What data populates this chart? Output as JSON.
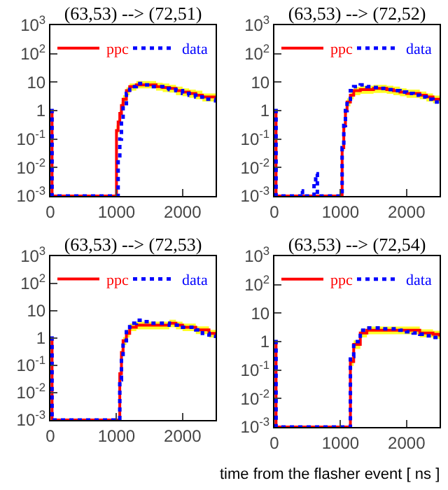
{
  "chart_data": [
    {
      "type": "step",
      "title": "(63,53) --> (72,51)",
      "x": [
        0,
        25,
        1000,
        1025,
        1050,
        1075,
        1100,
        1150,
        1200,
        1300,
        1400,
        1500,
        1600,
        1700,
        1800,
        1900,
        2000,
        2100,
        2200,
        2300,
        2400,
        2500
      ],
      "log": "y",
      "xlim": [
        0,
        2500
      ],
      "xticks": [
        0,
        1000,
        2000
      ],
      "ylim": [
        0.001,
        1000
      ],
      "yticks": [
        {
          "value": 0.001,
          "label": "10$^{-3}$"
        },
        {
          "value": 0.01,
          "label": "10$^{-2}$"
        },
        {
          "value": 0.1,
          "label": "10$^{-1}$"
        },
        {
          "value": 1,
          "label": "1"
        },
        {
          "value": 10,
          "label": "10"
        },
        {
          "value": 100,
          "label": "10$^{2}$"
        },
        {
          "value": 1000,
          "label": "10$^{3}$"
        }
      ],
      "grid": false,
      "legend": "top",
      "series": [
        {
          "name": "ppc",
          "color": "#ff0000",
          "line_style": "solid",
          "values": [
            1,
            0.001,
            0.2,
            0.4,
            0.8,
            1.5,
            2.5,
            5,
            7,
            8,
            8,
            8,
            7,
            6.5,
            6,
            5,
            4.5,
            4,
            3.5,
            3,
            3,
            2.5
          ],
          "upper": [
            null,
            null,
            0.3,
            0.5,
            1,
            2,
            3.5,
            6.5,
            9,
            11,
            11,
            11,
            9.5,
            9,
            8,
            7,
            6,
            5.5,
            5,
            4,
            4,
            3.5
          ],
          "lower": [
            null,
            null,
            0.15,
            0.3,
            0.6,
            1.1,
            1.8,
            3.5,
            5,
            6,
            6,
            6,
            5,
            4.5,
            4.3,
            3.5,
            3.2,
            2.8,
            2.5,
            2.1,
            2.1,
            1.8
          ]
        },
        {
          "name": "data",
          "color": "#0000ff",
          "line_style": "dotted",
          "values": [
            1,
            0.001,
            0.001,
            0.02,
            0.1,
            0.5,
            1.5,
            4,
            7,
            9,
            8,
            7,
            7,
            6,
            5.5,
            5,
            4,
            3.5,
            3,
            2.5,
            2.5,
            1.5
          ]
        }
      ]
    },
    {
      "type": "step",
      "title": "(63,53) --> (72,52)",
      "x": [
        0,
        25,
        1000,
        1025,
        1050,
        1075,
        1100,
        1150,
        1200,
        1300,
        1400,
        1500,
        1600,
        1700,
        1800,
        1900,
        2000,
        2100,
        2200,
        2300,
        2400,
        2500
      ],
      "log": "y",
      "xlim": [
        0,
        2500
      ],
      "xticks": [
        0,
        1000,
        2000
      ],
      "ylim": [
        0.001,
        1000
      ],
      "yticks": [
        {
          "value": 0.001,
          "label": "10$^{-3}$"
        },
        {
          "value": 0.01,
          "label": "10$^{-2}$"
        },
        {
          "value": 0.1,
          "label": "10$^{-1}$"
        },
        {
          "value": 1,
          "label": "1"
        },
        {
          "value": 10,
          "label": "10"
        },
        {
          "value": 100,
          "label": "10$^{2}$"
        },
        {
          "value": 1000,
          "label": "10$^{3}$"
        }
      ],
      "grid": false,
      "legend": "top",
      "series": [
        {
          "name": "ppc",
          "color": "#ff0000",
          "line_style": "solid",
          "values": [
            1,
            0.001,
            0.001,
            0.05,
            0.3,
            1,
            2,
            3.5,
            5,
            5.5,
            5.5,
            6,
            6,
            5.5,
            5,
            4.5,
            4,
            4,
            3.5,
            3,
            2.5,
            2.5
          ],
          "upper": [
            null,
            null,
            null,
            0.07,
            0.4,
            1.3,
            2.7,
            4.7,
            6.8,
            7.5,
            7.5,
            8,
            8,
            7.5,
            7,
            6,
            5.5,
            5.5,
            4.7,
            4,
            3.4,
            3.4
          ],
          "lower": [
            null,
            null,
            null,
            0.035,
            0.2,
            0.7,
            1.4,
            2.5,
            3.5,
            3.9,
            3.9,
            4.2,
            4.2,
            3.9,
            3.5,
            3.2,
            2.8,
            2.8,
            2.5,
            2.1,
            1.8,
            1.8
          ]
        },
        {
          "name": "data",
          "color": "#0000ff",
          "line_style": "dotted",
          "x": [
            0,
            25,
            400,
            425,
            600,
            625,
            650,
            1000,
            1025,
            1050,
            1075,
            1100,
            1150,
            1200,
            1300,
            1400,
            1500,
            1600,
            1700,
            1800,
            1900,
            2000,
            2100,
            2200,
            2300,
            2400,
            2500
          ],
          "values": [
            1,
            0.001,
            0.0015,
            0.001,
            0.003,
            0.006,
            0.001,
            0.001,
            0.05,
            0.3,
            1,
            2.5,
            5,
            7,
            8,
            7,
            6.5,
            6,
            5.5,
            5,
            4.5,
            4,
            3.5,
            3,
            2.5,
            2,
            1.5
          ]
        }
      ]
    },
    {
      "type": "step",
      "title": "(63,53) --> (72,53)",
      "x": [
        0,
        25,
        1000,
        1025,
        1050,
        1075,
        1100,
        1150,
        1200,
        1300,
        1400,
        1500,
        1600,
        1700,
        1800,
        1900,
        2000,
        2100,
        2200,
        2300,
        2400,
        2500
      ],
      "log": "y",
      "xlim": [
        0,
        2500
      ],
      "xticks": [
        0,
        1000,
        2000
      ],
      "ylim": [
        0.001,
        1000
      ],
      "yticks": [
        {
          "value": 0.001,
          "label": "10$^{-3}$"
        },
        {
          "value": 0.01,
          "label": "10$^{-2}$"
        },
        {
          "value": 0.1,
          "label": "10$^{-1}$"
        },
        {
          "value": 1,
          "label": "1"
        },
        {
          "value": 10,
          "label": "10"
        },
        {
          "value": 100,
          "label": "10$^{2}$"
        },
        {
          "value": 1000,
          "label": "10$^{3}$"
        }
      ],
      "grid": false,
      "legend": "top",
      "series": [
        {
          "name": "ppc",
          "color": "#ff0000",
          "line_style": "solid",
          "values": [
            1,
            0.001,
            0.001,
            0.001,
            0.05,
            0.3,
            0.8,
            1.5,
            2.5,
            3,
            3,
            3,
            3,
            3,
            3.5,
            3,
            2.5,
            2.5,
            2,
            2,
            1.5,
            1.2
          ],
          "upper": [
            null,
            null,
            null,
            null,
            0.07,
            0.4,
            1.1,
            2,
            3.4,
            4,
            4,
            4,
            4,
            4,
            4.7,
            4,
            3.4,
            3.4,
            2.7,
            2.7,
            2,
            1.6
          ],
          "lower": [
            null,
            null,
            null,
            null,
            0.035,
            0.2,
            0.55,
            1.05,
            1.8,
            2.1,
            2.1,
            2.1,
            2.1,
            2.1,
            2.5,
            2.1,
            1.8,
            1.8,
            1.4,
            1.4,
            1.05,
            0.85
          ]
        },
        {
          "name": "data",
          "color": "#0000ff",
          "line_style": "dotted",
          "values": [
            1,
            0.001,
            0.001,
            0.001,
            0.03,
            0.2,
            0.8,
            2,
            3.5,
            4.5,
            4,
            3.5,
            3.5,
            3.5,
            3,
            3,
            2.5,
            2.5,
            2,
            1.5,
            1.3,
            1
          ]
        }
      ]
    },
    {
      "type": "step",
      "title": "(63,53) --> (72,54)",
      "xlabel": "time from the flasher event [ ns ]",
      "x": [
        0,
        25,
        1000,
        1025,
        1050,
        1075,
        1100,
        1150,
        1200,
        1300,
        1400,
        1500,
        1600,
        1700,
        1800,
        1900,
        2000,
        2100,
        2200,
        2300,
        2400,
        2500
      ],
      "log": "y",
      "xlim": [
        0,
        2500
      ],
      "xticks": [
        0,
        1000,
        2000
      ],
      "ylim": [
        0.001,
        1000
      ],
      "yticks": [
        {
          "value": 0.001,
          "label": "10$^{-3}$"
        },
        {
          "value": 0.01,
          "label": "10$^{-2}$"
        },
        {
          "value": 0.1,
          "label": "10$^{-1}$"
        },
        {
          "value": 1,
          "label": "1"
        },
        {
          "value": 10,
          "label": "10"
        },
        {
          "value": 100,
          "label": "10$^{2}$"
        },
        {
          "value": 1000,
          "label": "10$^{3}$"
        }
      ],
      "grid": false,
      "legend": "top",
      "series": [
        {
          "name": "ppc",
          "color": "#ff0000",
          "line_style": "solid",
          "values": [
            1,
            0.001,
            0.001,
            0.001,
            0.001,
            0.001,
            0.001,
            0.2,
            0.8,
            2,
            2.5,
            2.5,
            2.5,
            2.5,
            2.5,
            2.5,
            2.5,
            2.5,
            2,
            2,
            1.8,
            1.5
          ],
          "upper": [
            null,
            null,
            null,
            null,
            null,
            null,
            null,
            0.27,
            1.1,
            2.7,
            3.4,
            3.4,
            3.4,
            3.4,
            3.4,
            3.4,
            3.4,
            3.4,
            2.7,
            2.7,
            2.4,
            2
          ],
          "lower": [
            null,
            null,
            null,
            null,
            null,
            null,
            null,
            0.14,
            0.55,
            1.4,
            1.8,
            1.8,
            1.8,
            1.8,
            1.8,
            1.8,
            1.8,
            1.8,
            1.4,
            1.4,
            1.25,
            1.05
          ]
        },
        {
          "name": "data",
          "color": "#0000ff",
          "line_style": "dotted",
          "values": [
            1,
            0.001,
            0.001,
            0.001,
            0.001,
            0.001,
            0.001,
            0.3,
            1,
            2.5,
            3,
            3,
            2.8,
            2.8,
            2.8,
            2.5,
            2.2,
            2,
            1.8,
            1.6,
            1.4,
            1.2
          ]
        }
      ]
    }
  ]
}
